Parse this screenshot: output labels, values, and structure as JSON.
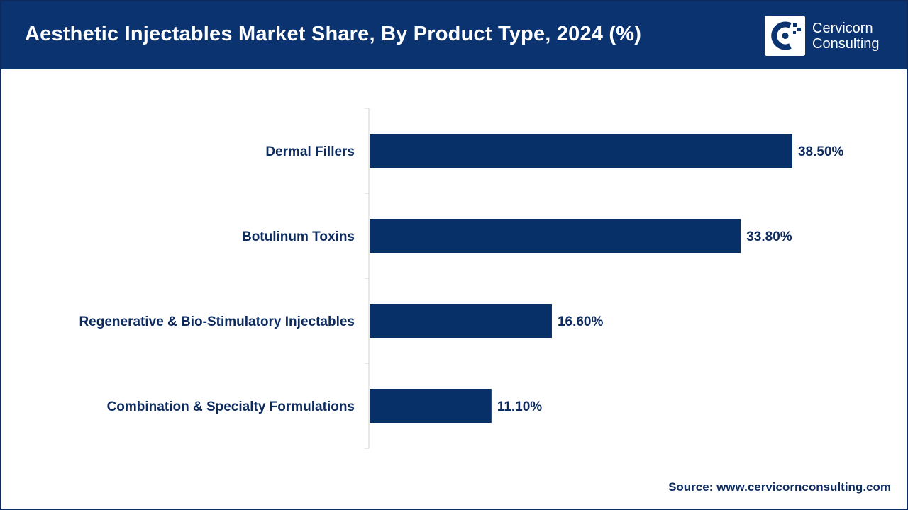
{
  "header": {
    "title": "Aesthetic Injectables Market Share, By Product Type, 2024 (%)",
    "logo_line1": "Cervicorn",
    "logo_line2": "Consulting",
    "logo_icon": "cervicorn-logo-icon"
  },
  "colors": {
    "header_bg": "#0a3370",
    "bar": "#073068",
    "text": "#0d2b5e"
  },
  "chart_data": {
    "type": "bar",
    "orientation": "horizontal",
    "title": "Aesthetic Injectables Market Share, By Product Type, 2024 (%)",
    "categories": [
      "Dermal Fillers",
      "Botulinum Toxins",
      "Regenerative & Bio-Stimulatory Injectables",
      "Combination & Specialty Formulations"
    ],
    "values": [
      38.5,
      33.8,
      16.6,
      11.1
    ],
    "value_labels": [
      "38.50%",
      "33.80%",
      "16.60%",
      "11.10%"
    ],
    "xlim": [
      0,
      42
    ],
    "grid": false,
    "legend": "none"
  },
  "footer": {
    "source": "Source: www.cervicornconsulting.com"
  }
}
